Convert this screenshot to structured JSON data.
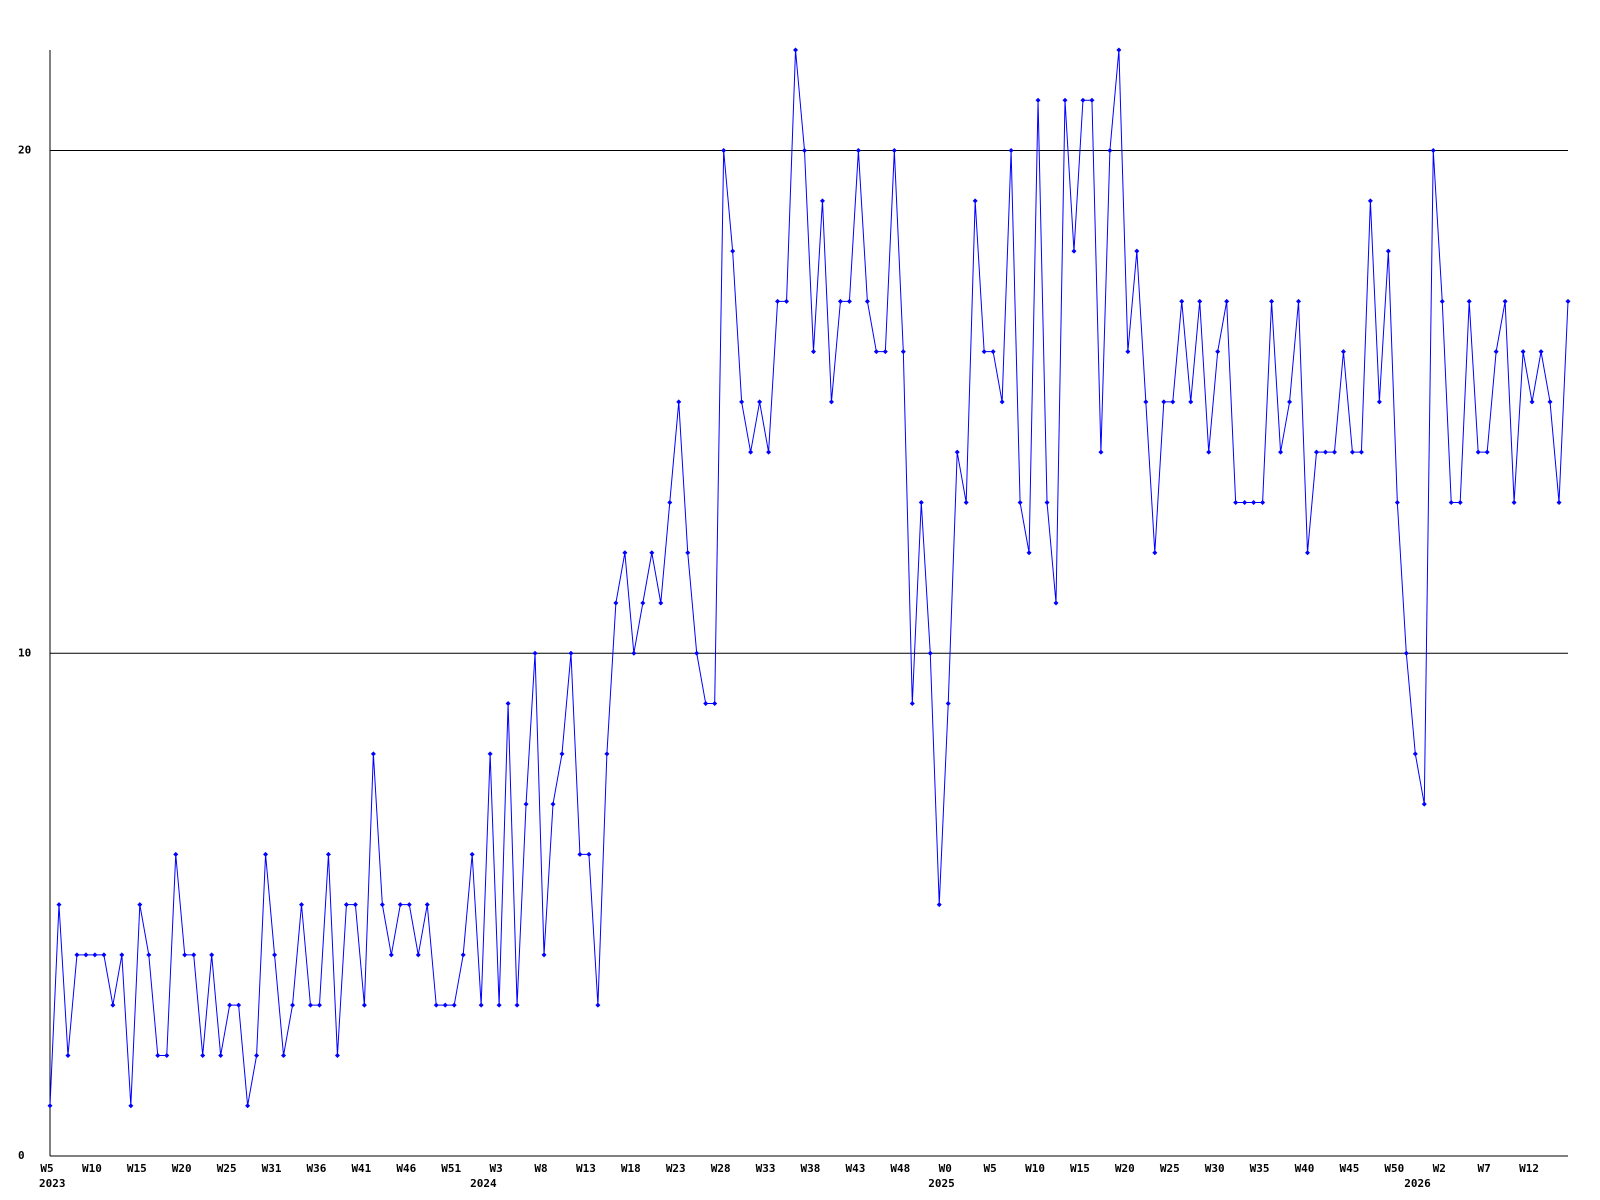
{
  "chart_data": {
    "type": "line",
    "categories": [
      "W5",
      null,
      null,
      null,
      null,
      "W10",
      null,
      null,
      null,
      null,
      "W15",
      null,
      null,
      null,
      null,
      "W20",
      null,
      null,
      null,
      null,
      "W25",
      null,
      null,
      null,
      null,
      "W31",
      null,
      null,
      null,
      null,
      "W36",
      null,
      null,
      null,
      null,
      "W41",
      null,
      null,
      null,
      null,
      "W46",
      null,
      null,
      null,
      null,
      "W51",
      null,
      null,
      null,
      null,
      "W3",
      null,
      null,
      null,
      null,
      "W8",
      null,
      null,
      null,
      null,
      "W13",
      null,
      null,
      null,
      null,
      "W18",
      null,
      null,
      null,
      null,
      "W23",
      null,
      null,
      null,
      null,
      "W28",
      null,
      null,
      null,
      null,
      "W33",
      null,
      null,
      null,
      null,
      "W38",
      null,
      null,
      null,
      null,
      "W43",
      null,
      null,
      null,
      null,
      "W48",
      null,
      null,
      null,
      null,
      "W0",
      null,
      null,
      null,
      null,
      "W5",
      null,
      null,
      null,
      null,
      "W10",
      null,
      null,
      null,
      null,
      "W15",
      null,
      null,
      null,
      null,
      "W20",
      null,
      null,
      null,
      null,
      "W25",
      null,
      null,
      null,
      null,
      "W30",
      null,
      null,
      null,
      null,
      "W35",
      null,
      null,
      null,
      null,
      "W40",
      null,
      null,
      null,
      null,
      "W45",
      null,
      null,
      null,
      null,
      "W50",
      null,
      null,
      null,
      null,
      "W2",
      null,
      null,
      null,
      null,
      "W7",
      null,
      null,
      null,
      null,
      "W12",
      null,
      null,
      null,
      null
    ],
    "x_groups": [
      {
        "label": "2023",
        "start": 0
      },
      {
        "label": "2024",
        "start": 48
      },
      {
        "label": "2025",
        "start": 99
      },
      {
        "label": "2026",
        "start": 152
      }
    ],
    "values": [
      1,
      5,
      2,
      4,
      4,
      4,
      4,
      3,
      4,
      1,
      5,
      4,
      2,
      2,
      6,
      4,
      4,
      2,
      4,
      2,
      3,
      3,
      1,
      2,
      6,
      4,
      2,
      3,
      5,
      3,
      3,
      6,
      2,
      5,
      5,
      3,
      8,
      5,
      4,
      5,
      5,
      4,
      5,
      3,
      3,
      3,
      4,
      6,
      3,
      8,
      3,
      9,
      3,
      7,
      10,
      4,
      7,
      8,
      10,
      6,
      6,
      3,
      8,
      11,
      12,
      10,
      11,
      12,
      11,
      13,
      15,
      12,
      10,
      9,
      9,
      20,
      18,
      15,
      14,
      15,
      14,
      17,
      17,
      22,
      20,
      16,
      19,
      15,
      17,
      17,
      20,
      17,
      16,
      16,
      20,
      16,
      9,
      13,
      10,
      5,
      9,
      14,
      13,
      19,
      16,
      16,
      15,
      20,
      13,
      12,
      21,
      13,
      11,
      21,
      18,
      21,
      21,
      14,
      20,
      22,
      16,
      18,
      15,
      12,
      15,
      15,
      17,
      15,
      17,
      14,
      16,
      17,
      13,
      13,
      13,
      13,
      17,
      14,
      15,
      17,
      12,
      14,
      14,
      14,
      16,
      14,
      14,
      19,
      15,
      18,
      13,
      10,
      8,
      7,
      20,
      17,
      13,
      13,
      17,
      14,
      14,
      16,
      17,
      13,
      16,
      15,
      16,
      15,
      13,
      17
    ],
    "color": "#0000ff",
    "ylim": [
      0,
      22
    ],
    "yticks": [
      0,
      10,
      20
    ],
    "grid": true
  }
}
